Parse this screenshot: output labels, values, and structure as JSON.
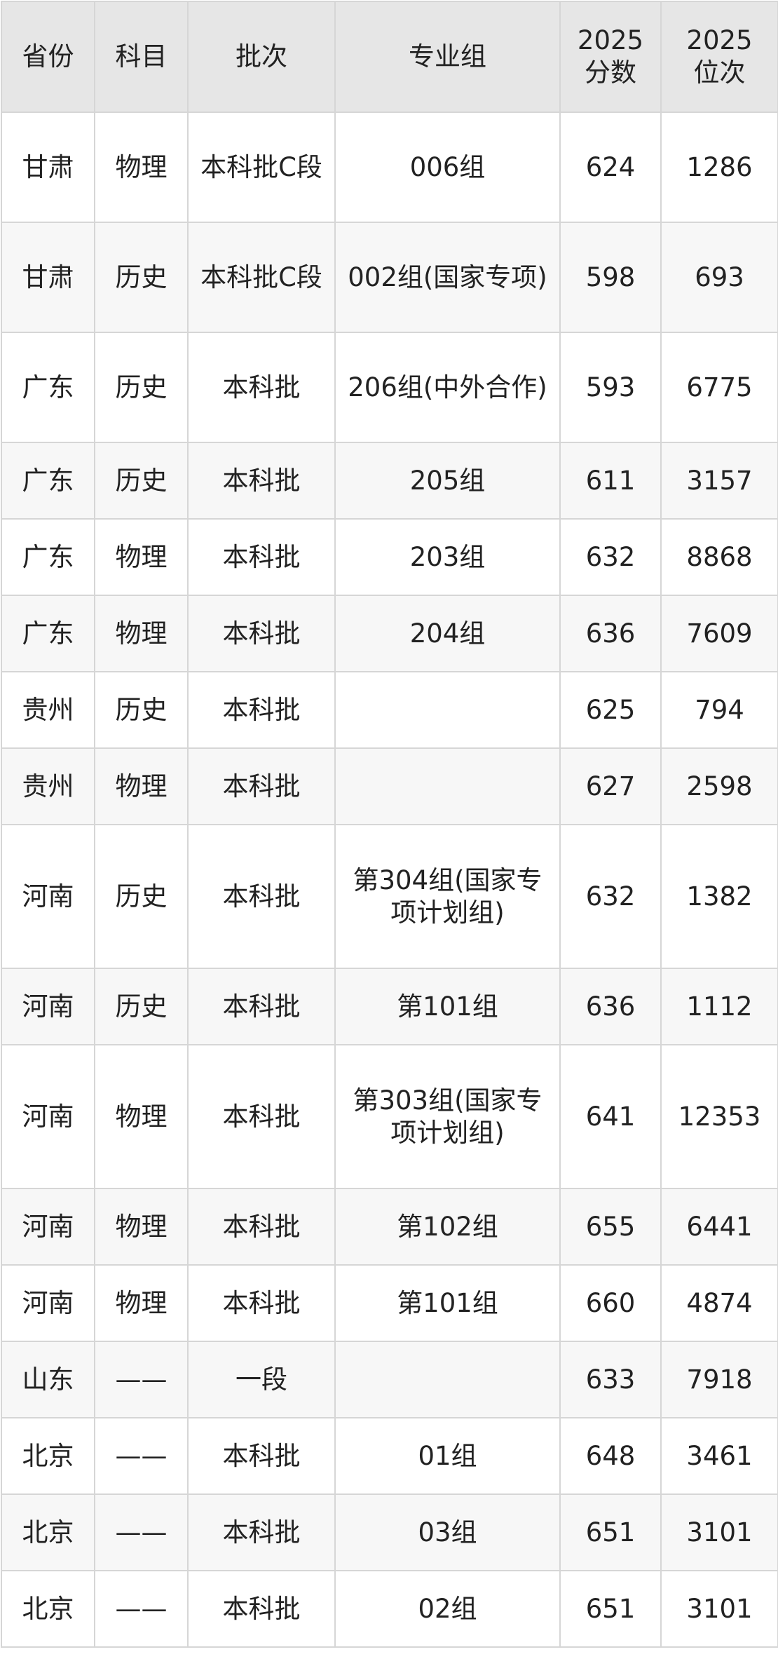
{
  "headers": [
    "省份",
    "科目",
    "批次",
    "专业组",
    "2025\n分数",
    "2025\n位次"
  ],
  "rows": [
    [
      "甘肃",
      "物理",
      "本科批C段",
      "006组",
      "624",
      "1286"
    ],
    [
      "甘肃",
      "历史",
      "本科批C段",
      "002组(国家专项)",
      "598",
      "693"
    ],
    [
      "广东",
      "历史",
      "本科批",
      "206组(中外合作)",
      "593",
      "6775"
    ],
    [
      "广东",
      "历史",
      "本科批",
      "205组",
      "611",
      "3157"
    ],
    [
      "广东",
      "物理",
      "本科批",
      "203组",
      "632",
      "8868"
    ],
    [
      "广东",
      "物理",
      "本科批",
      "204组",
      "636",
      "7609"
    ],
    [
      "贵州",
      "历史",
      "本科批",
      "",
      "625",
      "794"
    ],
    [
      "贵州",
      "物理",
      "本科批",
      "",
      "627",
      "2598"
    ],
    [
      "河南",
      "历史",
      "本科批",
      "第304组(国家专项计划组)",
      "632",
      "1382"
    ],
    [
      "河南",
      "历史",
      "本科批",
      "第101组",
      "636",
      "1112"
    ],
    [
      "河南",
      "物理",
      "本科批",
      "第303组(国家专项计划组)",
      "641",
      "12353"
    ],
    [
      "河南",
      "物理",
      "本科批",
      "第102组",
      "655",
      "6441"
    ],
    [
      "河南",
      "物理",
      "本科批",
      "第101组",
      "660",
      "4874"
    ],
    [
      "山东",
      "——",
      "一段",
      "",
      "633",
      "7918"
    ],
    [
      "北京",
      "——",
      "本科批",
      "01组",
      "648",
      "3461"
    ],
    [
      "北京",
      "——",
      "本科批",
      "03组",
      "651",
      "3101"
    ],
    [
      "北京",
      "——",
      "本科批",
      "02组",
      "651",
      "3101"
    ]
  ]
}
